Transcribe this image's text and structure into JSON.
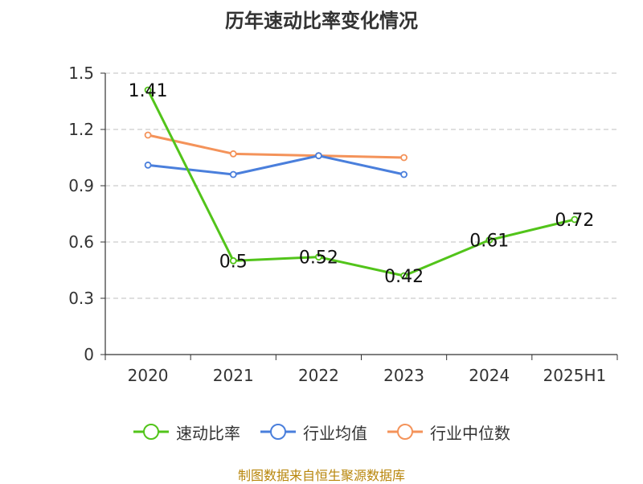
{
  "source_text": "制图数据来自恒生聚源数据库",
  "chart_data": {
    "type": "line",
    "title": "历年速动比率变化情况",
    "xlabel": "",
    "ylabel": "",
    "categories": [
      "2020",
      "2021",
      "2022",
      "2023",
      "2024",
      "2025H1"
    ],
    "ylim": [
      0,
      1.5
    ],
    "yticks": [
      0,
      0.3,
      0.6,
      0.9,
      1.2,
      1.5
    ],
    "ytick_labels": [
      "0",
      "0.3",
      "0.6",
      "0.9",
      "1.2",
      "1.5"
    ],
    "grid": true,
    "legend_position": "bottom",
    "series": [
      {
        "name": "速动比率",
        "color": "#52c41a",
        "values": [
          1.41,
          0.5,
          0.52,
          0.42,
          0.61,
          0.72
        ],
        "labels": [
          "1.41",
          "0.5",
          "0.52",
          "0.42",
          "0.61",
          "0.72"
        ]
      },
      {
        "name": "行业均值",
        "color": "#4a7fdc",
        "values": [
          1.01,
          0.96,
          1.06,
          0.96,
          null,
          null
        ],
        "labels": []
      },
      {
        "name": "行业中位数",
        "color": "#f4935a",
        "values": [
          1.17,
          1.07,
          1.06,
          1.05,
          null,
          null
        ],
        "labels": []
      }
    ]
  }
}
